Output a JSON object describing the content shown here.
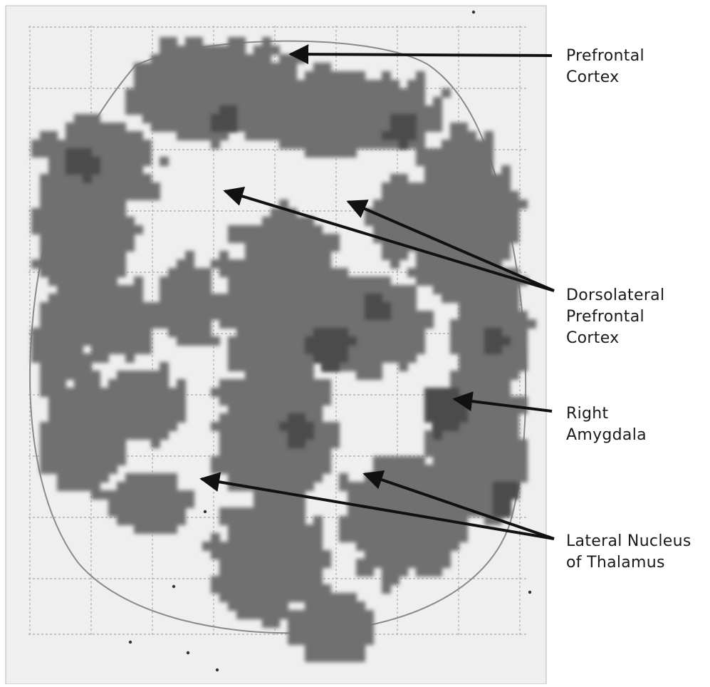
{
  "labels": {
    "prefrontal": [
      "Prefrontal",
      "Cortex"
    ],
    "dlpfc": [
      "Dorsolateral",
      "Prefrontal",
      "Cortex"
    ],
    "amygdala": [
      "Right",
      "Amygdala"
    ],
    "thalamus": [
      "Lateral Nucleus",
      "of Thalamus"
    ]
  },
  "colors": {
    "scan_background": "#f2f2f2",
    "activity": "#6e6e6e",
    "activity_dark": "#4a4a4a",
    "grid": "#b8b8b8",
    "arrow": "#111111"
  }
}
